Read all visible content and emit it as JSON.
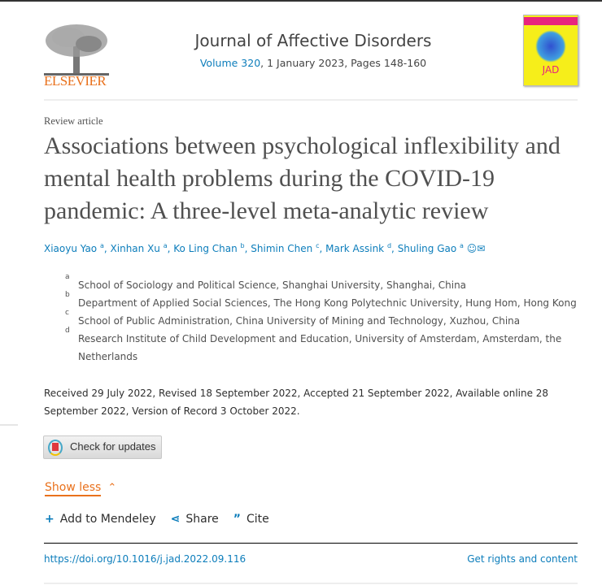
{
  "publisher": {
    "logo_text": "ELSEVIER"
  },
  "journal": {
    "name": "Journal of Affective Disorders",
    "volume_link": "Volume 320",
    "issue_info": ", 1 January 2023, Pages 148-160",
    "cover_text": "JAD"
  },
  "article": {
    "type": "Review article",
    "title": "Associations between psychological inflexibility and mental health problems during the COVID-19 pandemic: A three-level meta-analytic review",
    "authors": [
      {
        "name": "Xiaoyu Yao",
        "aff": "a"
      },
      {
        "name": "Xinhan Xu",
        "aff": "a"
      },
      {
        "name": "Ko Ling Chan",
        "aff": "b"
      },
      {
        "name": "Shimin Chen",
        "aff": "c"
      },
      {
        "name": "Mark Assink",
        "aff": "d"
      },
      {
        "name": "Shuling Gao",
        "aff": "a"
      }
    ],
    "affiliations": [
      {
        "label": "a",
        "text": "School of Sociology and Political Science, Shanghai University, Shanghai, China"
      },
      {
        "label": "b",
        "text": "Department of Applied Social Sciences, The Hong Kong Polytechnic University, Hung Hom, Hong Kong"
      },
      {
        "label": "c",
        "text": "School of Public Administration, China University of Mining and Technology, Xuzhou, China"
      },
      {
        "label": "d",
        "text": "Research Institute of Child Development and Education, University of Amsterdam, Amsterdam, the Netherlands"
      }
    ],
    "dates": "Received 29 July 2022, Revised 18 September 2022, Accepted 21 September 2022, Available online 28 September 2022, Version of Record 3 October 2022.",
    "doi": "https://doi.org/10.1016/j.jad.2022.09.116"
  },
  "buttons": {
    "check_updates": "Check for updates",
    "show_less": "Show less",
    "add_mendeley": "Add to Mendeley",
    "share": "Share",
    "cite": "Cite",
    "rights": "Get rights and content"
  },
  "colors": {
    "accent": "#e9711c",
    "link": "#0c7dbb"
  }
}
